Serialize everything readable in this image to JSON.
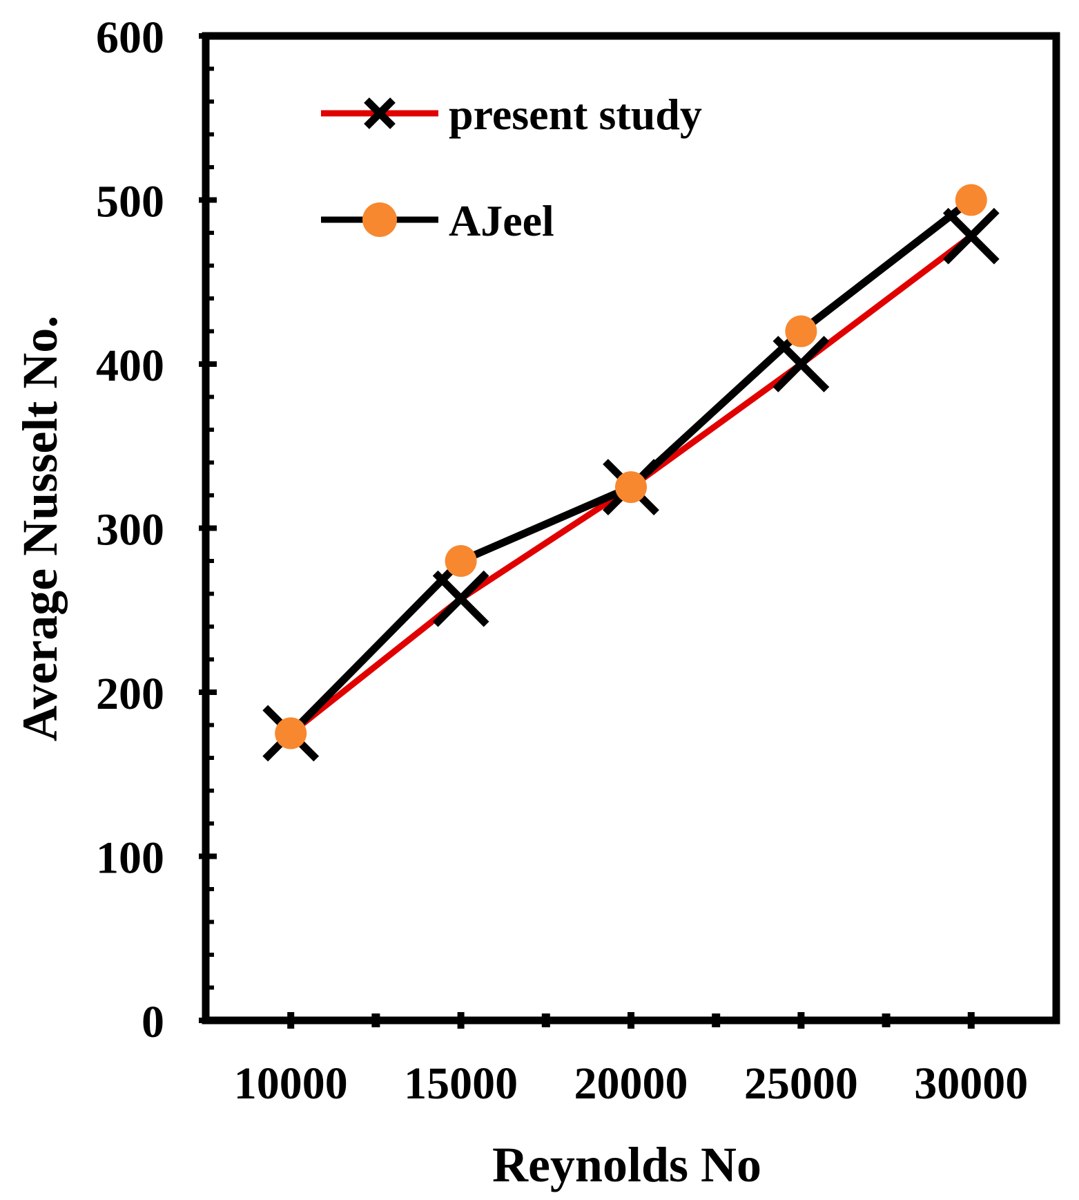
{
  "chart_data": {
    "type": "line",
    "title": "",
    "xlabel": "Reynolds No",
    "ylabel": "Average Nusselt No.",
    "x": [
      10000,
      15000,
      20000,
      25000,
      30000
    ],
    "xlim": [
      7500,
      32500
    ],
    "xticks": [
      10000,
      15000,
      20000,
      25000,
      30000
    ],
    "xtick_labels": [
      "10000",
      "15000",
      "20000",
      "25000",
      "30000"
    ],
    "ylim": [
      0,
      600
    ],
    "yticks": [
      0,
      100,
      200,
      300,
      400,
      500,
      600
    ],
    "ytick_labels": [
      "0",
      "100",
      "200",
      "300",
      "400",
      "500",
      "600"
    ],
    "grid": false,
    "legend_position": "top-left",
    "series": [
      {
        "name": "present study",
        "values": [
          175,
          257,
          325,
          400,
          478
        ],
        "line_color": "#e00000",
        "marker": "x",
        "marker_color": "#000000"
      },
      {
        "name": "AJeel",
        "values": [
          175,
          280,
          325,
          420,
          500
        ],
        "line_color": "#000000",
        "marker": "circle",
        "marker_color": "#f7882f"
      }
    ]
  }
}
